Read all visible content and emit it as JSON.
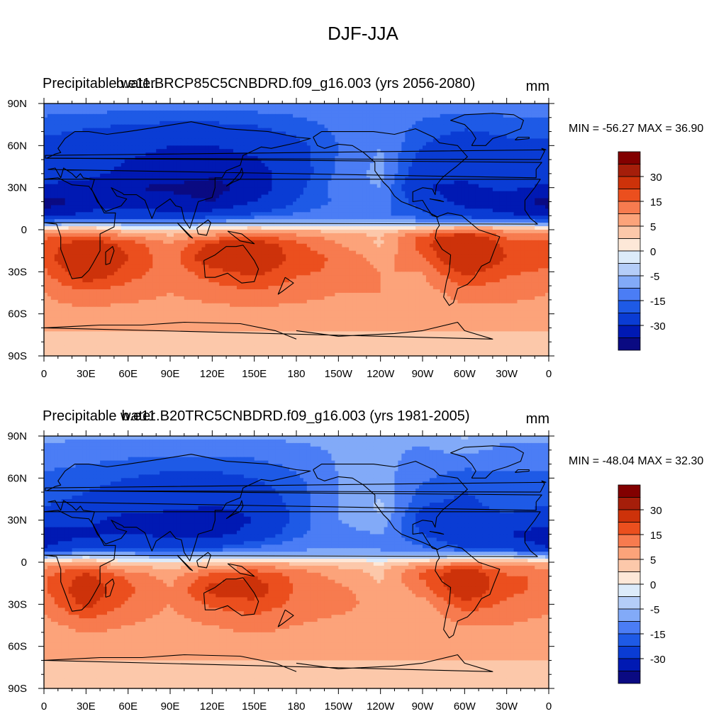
{
  "figure": {
    "title": "DJF-JJA"
  },
  "colorbar": {
    "colors": [
      "#0a0a82",
      "#0019b3",
      "#0a3cd4",
      "#1e5ae6",
      "#4b7df5",
      "#82aaf8",
      "#b4cdf8",
      "#dcebfa",
      "#fde8d8",
      "#fcc8aa",
      "#fca37a",
      "#f77b4f",
      "#eb4f1e",
      "#cd320a",
      "#a51e0a",
      "#820000"
    ],
    "tick_labels": [
      "30",
      "15",
      "5",
      "0",
      "-5",
      "-15",
      "-30"
    ]
  },
  "chart_data": [
    {
      "type": "heatmap",
      "left_title": "Precipitable water",
      "center_title": "b.e11.BRCP85C5CNBDRD.f09_g16.003 (yrs 2056-2080)",
      "units": "mm",
      "min_label": "MIN = -56.27 MAX =  36.90",
      "min": -56.27,
      "max": 36.9,
      "x_ticks": [
        "0",
        "30E",
        "60E",
        "90E",
        "120E",
        "150E",
        "180",
        "150W",
        "120W",
        "90W",
        "60W",
        "30W",
        "0"
      ],
      "y_ticks": [
        "90N",
        "60N",
        "30N",
        "0",
        "30S",
        "60S",
        "90S"
      ],
      "xlim": [
        0,
        360
      ],
      "ylim": [
        -90,
        90
      ],
      "levels": [
        -40,
        -30,
        -20,
        -15,
        -10,
        -5,
        -2,
        0,
        2,
        5,
        10,
        15,
        20,
        30,
        35
      ],
      "lat": [
        90,
        60,
        40,
        30,
        20,
        10,
        5,
        0,
        -5,
        -10,
        -20,
        -30,
        -45,
        -60,
        -75,
        -90
      ],
      "lon": [
        0,
        30,
        60,
        90,
        120,
        150,
        180,
        210,
        240,
        270,
        300,
        330,
        360
      ],
      "values": [
        [
          -12,
          -12,
          -12,
          -12,
          -12,
          -12,
          -12,
          -12,
          -12,
          -12,
          -12,
          -12,
          -12
        ],
        [
          -22,
          -25,
          -28,
          -30,
          -30,
          -27,
          -22,
          -15,
          -10,
          -20,
          -25,
          -22,
          -22
        ],
        [
          -26,
          -28,
          -32,
          -34,
          -38,
          -35,
          -24,
          -14,
          -8,
          -26,
          -28,
          -24,
          -26
        ],
        [
          -32,
          -32,
          -40,
          -42,
          -44,
          -36,
          -22,
          -12,
          -10,
          -30,
          -32,
          -28,
          -32
        ],
        [
          -44,
          -38,
          -34,
          -36,
          -40,
          -30,
          -20,
          -14,
          -12,
          -24,
          -34,
          -36,
          -44
        ],
        [
          -36,
          -26,
          -24,
          -28,
          -24,
          -18,
          -14,
          -12,
          -14,
          -18,
          -24,
          -28,
          -36
        ],
        [
          -10,
          -6,
          -8,
          -10,
          -6,
          -6,
          -8,
          -6,
          -6,
          -8,
          -6,
          -6,
          -10
        ],
        [
          4,
          6,
          2,
          1,
          3,
          5,
          4,
          3,
          2,
          6,
          10,
          8,
          4
        ],
        [
          14,
          18,
          10,
          6,
          12,
          16,
          12,
          8,
          5,
          16,
          26,
          14,
          14
        ],
        [
          16,
          24,
          18,
          10,
          22,
          24,
          16,
          10,
          4,
          18,
          30,
          18,
          16
        ],
        [
          18,
          28,
          20,
          12,
          26,
          28,
          18,
          14,
          8,
          14,
          30,
          20,
          18
        ],
        [
          14,
          26,
          18,
          12,
          18,
          22,
          16,
          14,
          10,
          10,
          22,
          16,
          14
        ],
        [
          10,
          14,
          12,
          10,
          12,
          14,
          12,
          10,
          10,
          8,
          12,
          12,
          10
        ],
        [
          8,
          8,
          8,
          8,
          8,
          8,
          8,
          8,
          8,
          8,
          8,
          8,
          8
        ],
        [
          4,
          4,
          4,
          4,
          4,
          4,
          4,
          4,
          4,
          4,
          4,
          4,
          4
        ],
        [
          2,
          2,
          2,
          2,
          2,
          2,
          2,
          2,
          2,
          2,
          2,
          2,
          2
        ]
      ]
    },
    {
      "type": "heatmap",
      "left_title": "Precipitable water",
      "center_title": "b.e11.B20TRC5CNBDRD.f09_g16.003 (yrs 1981-2005)",
      "units": "mm",
      "min_label": "MIN = -48.04 MAX =  32.30",
      "min": -48.04,
      "max": 32.3,
      "x_ticks": [
        "0",
        "30E",
        "60E",
        "90E",
        "120E",
        "150E",
        "180",
        "150W",
        "120W",
        "90W",
        "60W",
        "30W",
        "0"
      ],
      "y_ticks": [
        "90N",
        "60N",
        "30N",
        "0",
        "30S",
        "60S",
        "90S"
      ],
      "xlim": [
        0,
        360
      ],
      "ylim": [
        -90,
        90
      ],
      "levels": [
        -40,
        -30,
        -20,
        -15,
        -10,
        -5,
        -2,
        0,
        2,
        5,
        10,
        15,
        20,
        30,
        35
      ],
      "lat": [
        90,
        60,
        40,
        30,
        20,
        10,
        5,
        0,
        -5,
        -10,
        -20,
        -30,
        -45,
        -60,
        -75,
        -90
      ],
      "lon": [
        0,
        30,
        60,
        90,
        120,
        150,
        180,
        210,
        240,
        270,
        300,
        330,
        360
      ],
      "values": [
        [
          -9,
          -9,
          -9,
          -9,
          -9,
          -9,
          -9,
          -9,
          -9,
          -9,
          -4,
          -9,
          -9
        ],
        [
          -16,
          -18,
          -20,
          -22,
          -22,
          -20,
          -16,
          -10,
          -8,
          -14,
          -18,
          -16,
          -16
        ],
        [
          -20,
          -22,
          -25,
          -28,
          -30,
          -27,
          -18,
          -10,
          -4,
          -20,
          -22,
          -18,
          -20
        ],
        [
          -26,
          -28,
          -34,
          -34,
          -36,
          -30,
          -18,
          -10,
          -6,
          -24,
          -26,
          -22,
          -26
        ],
        [
          -36,
          -32,
          -30,
          -32,
          -34,
          -26,
          -16,
          -12,
          -10,
          -20,
          -28,
          -30,
          -36
        ],
        [
          -30,
          -22,
          -20,
          -24,
          -20,
          -14,
          -12,
          -10,
          -12,
          -14,
          -20,
          -24,
          -30
        ],
        [
          -8,
          -4,
          -6,
          -8,
          -4,
          -4,
          -6,
          -4,
          -4,
          -6,
          -4,
          -4,
          -8
        ],
        [
          3,
          5,
          1,
          1,
          2,
          4,
          3,
          2,
          1,
          4,
          8,
          6,
          3
        ],
        [
          12,
          16,
          8,
          5,
          10,
          14,
          10,
          6,
          4,
          14,
          22,
          12,
          12
        ],
        [
          14,
          22,
          14,
          8,
          18,
          20,
          14,
          8,
          4,
          16,
          26,
          16,
          14
        ],
        [
          14,
          24,
          16,
          10,
          22,
          24,
          14,
          12,
          6,
          12,
          26,
          16,
          14
        ],
        [
          12,
          22,
          14,
          10,
          16,
          18,
          14,
          12,
          8,
          8,
          18,
          14,
          12
        ],
        [
          8,
          12,
          10,
          8,
          10,
          12,
          10,
          8,
          8,
          6,
          10,
          10,
          8
        ],
        [
          7,
          7,
          7,
          7,
          7,
          7,
          7,
          7,
          7,
          7,
          7,
          7,
          7
        ],
        [
          4,
          4,
          4,
          4,
          4,
          4,
          4,
          4,
          4,
          4,
          4,
          4,
          4
        ],
        [
          2,
          2,
          2,
          2,
          2,
          2,
          2,
          2,
          2,
          2,
          2,
          2,
          2
        ]
      ]
    }
  ]
}
